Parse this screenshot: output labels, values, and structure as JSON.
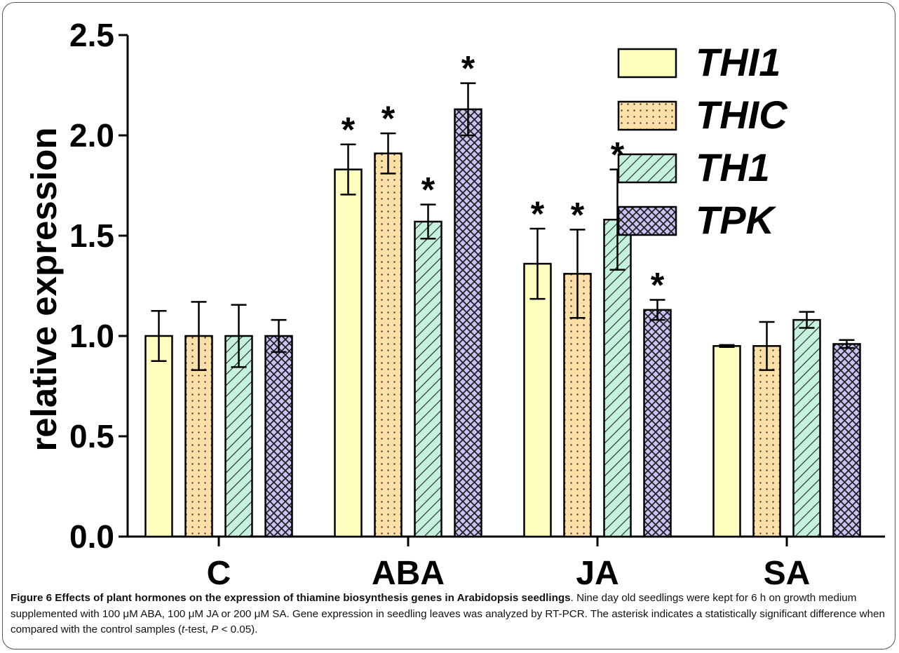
{
  "chart_data": {
    "type": "bar",
    "ylabel": "relative expression",
    "ylim": [
      0,
      2.5
    ],
    "yticks": [
      "0.0",
      "0.5",
      "1.0",
      "1.5",
      "2.0",
      "2.5"
    ],
    "categories": [
      "C",
      "ABA",
      "JA",
      "SA"
    ],
    "grid": false,
    "legend_position": "top-right",
    "series": [
      {
        "name": "THI1",
        "color": "#ffffc0",
        "pattern": "none",
        "values": [
          1.0,
          1.83,
          1.36,
          0.95
        ],
        "errors": [
          0.125,
          0.125,
          0.175,
          0.005
        ],
        "significant": [
          false,
          true,
          true,
          false
        ]
      },
      {
        "name": "THIC",
        "color": "#fde0a8",
        "pattern": "dots",
        "values": [
          1.0,
          1.91,
          1.31,
          0.95
        ],
        "errors": [
          0.17,
          0.1,
          0.22,
          0.12
        ],
        "significant": [
          false,
          true,
          true,
          false
        ]
      },
      {
        "name": "TH1",
        "color": "#c4f2dc",
        "pattern": "diagonal",
        "values": [
          1.0,
          1.57,
          1.58,
          1.08
        ],
        "errors": [
          0.155,
          0.085,
          0.25,
          0.04
        ],
        "significant": [
          false,
          true,
          true,
          false
        ]
      },
      {
        "name": "TPK",
        "color": "#c9c2f4",
        "pattern": "crosshatch",
        "values": [
          1.0,
          2.13,
          1.13,
          0.96
        ],
        "errors": [
          0.08,
          0.13,
          0.05,
          0.02
        ],
        "significant": [
          false,
          true,
          true,
          false
        ]
      }
    ],
    "significance_marker": "*"
  },
  "caption": {
    "title": "Figure 6 Effects of plant hormones on the expression of thiamine biosynthesis genes in Arabidopsis seedlings",
    "text_1": ". Nine day old seedlings were kept for 6 h on growth medium supplemented with 100 μM ABA, 100 μM JA or 200 μM SA. Gene expression in seedling leaves was analyzed by RT-PCR. The asterisk indicates a statistically significant difference when compared with the control samples (",
    "t_italic": "t",
    "text_2": "-test, ",
    "p_italic": "P",
    "text_3": " < 0.05)."
  }
}
